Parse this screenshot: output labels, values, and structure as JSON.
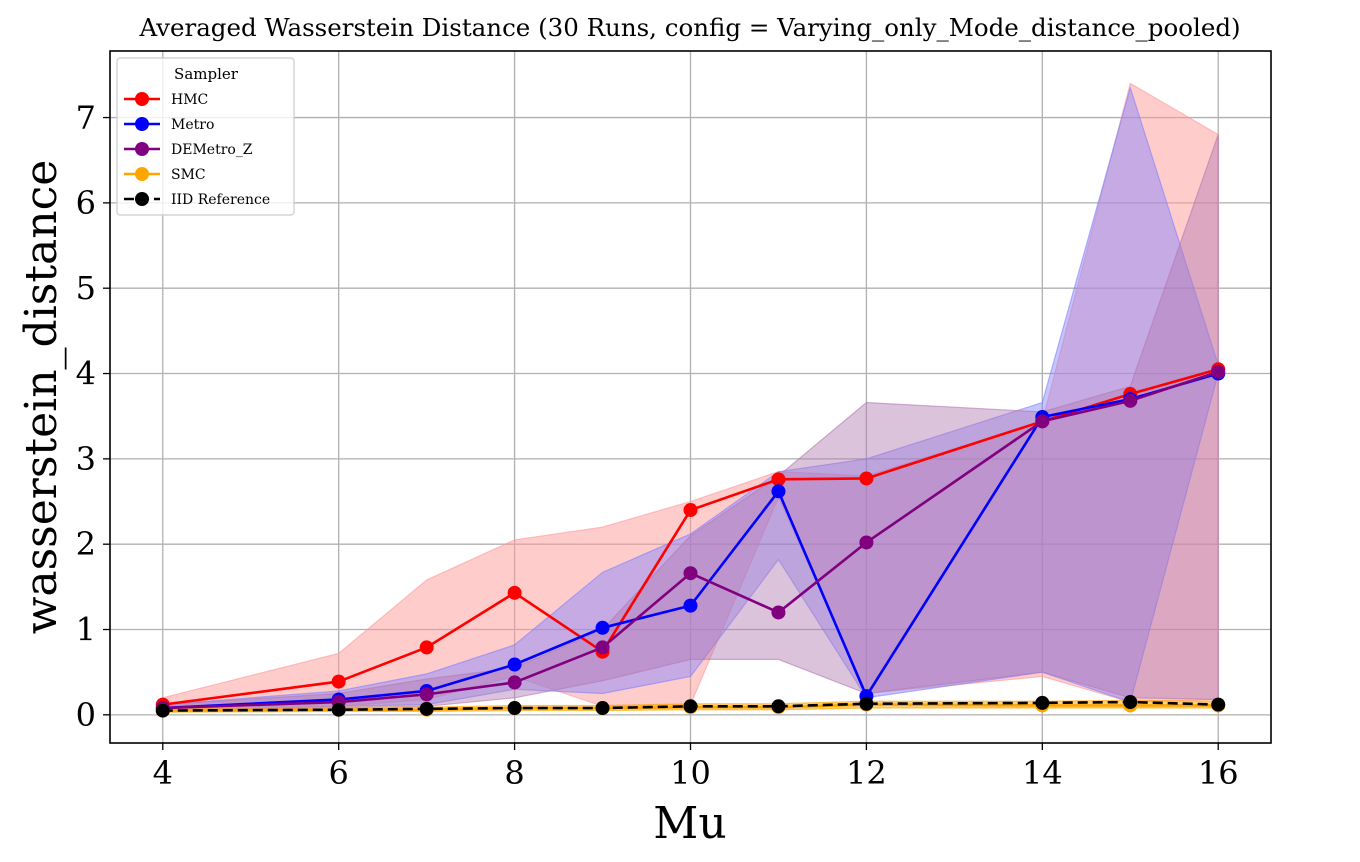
{
  "chart_data": {
    "type": "line",
    "title": "Averaged Wasserstein Distance (30 Runs, config = Varying_only_Mode_distance_pooled)",
    "xlabel": "Mu",
    "ylabel": "wasserstein_distance",
    "xlim": [
      3.4,
      16.6
    ],
    "ylim": [
      -0.33,
      7.78
    ],
    "grid": true,
    "legend_title": "Sampler",
    "legend_position": "top-left",
    "x": [
      4,
      6,
      7,
      8,
      9,
      10,
      11,
      12,
      14,
      15,
      16
    ],
    "x_ticks": [
      4,
      6,
      8,
      10,
      12,
      14,
      16
    ],
    "y_ticks": [
      0,
      1,
      2,
      3,
      4,
      5,
      6,
      7
    ],
    "series": [
      {
        "name": "HMC",
        "color": "#ff0000",
        "band_color": "#ff9999",
        "band_opacity": 0.5,
        "dashed": false,
        "values": [
          0.12,
          0.39,
          0.79,
          1.43,
          0.74,
          2.4,
          2.76,
          2.77,
          3.44,
          3.76,
          4.05
        ],
        "band_low": [
          0.05,
          0.1,
          0.18,
          0.45,
          0.1,
          0.12,
          2.55,
          0.25,
          0.45,
          0.15,
          0.18
        ],
        "band_high": [
          0.2,
          0.72,
          1.58,
          2.05,
          2.2,
          2.5,
          2.85,
          2.8,
          3.44,
          7.4,
          6.8
        ]
      },
      {
        "name": "Metro",
        "color": "#0000ff",
        "band_color": "#8080ff",
        "band_opacity": 0.45,
        "dashed": false,
        "values": [
          0.08,
          0.18,
          0.28,
          0.59,
          1.02,
          1.28,
          2.62,
          0.22,
          3.49,
          3.7,
          4.0
        ],
        "band_low": [
          0.05,
          0.1,
          0.12,
          0.3,
          0.25,
          0.45,
          1.82,
          0.2,
          0.5,
          0.15,
          4.0
        ],
        "band_high": [
          0.12,
          0.28,
          0.48,
          0.82,
          1.67,
          2.12,
          2.85,
          3.0,
          3.66,
          7.35,
          4.1
        ]
      },
      {
        "name": "DEMetro_Z",
        "color": "#800080",
        "band_color": "#b27ab2",
        "band_opacity": 0.45,
        "dashed": false,
        "values": [
          0.08,
          0.15,
          0.24,
          0.38,
          0.79,
          1.66,
          1.2,
          2.02,
          3.44,
          3.68,
          4.02
        ],
        "band_low": [
          0.05,
          0.08,
          0.1,
          0.2,
          0.4,
          0.65,
          0.65,
          0.25,
          0.5,
          0.2,
          0.18
        ],
        "band_high": [
          0.12,
          0.25,
          0.42,
          0.55,
          1.0,
          2.1,
          2.8,
          3.66,
          3.55,
          3.85,
          6.8
        ]
      },
      {
        "name": "SMC",
        "color": "#ffa500",
        "band_color": "#ffa500",
        "band_opacity": 0.5,
        "dashed": false,
        "values": [
          0.05,
          0.06,
          0.06,
          0.08,
          0.08,
          0.09,
          0.09,
          0.12,
          0.11,
          0.11,
          0.11
        ],
        "band_low": [
          0.03,
          0.04,
          0.04,
          0.05,
          0.05,
          0.06,
          0.06,
          0.08,
          0.08,
          0.08,
          0.08
        ],
        "band_high": [
          0.08,
          0.09,
          0.09,
          0.11,
          0.11,
          0.13,
          0.13,
          0.16,
          0.16,
          0.17,
          0.16
        ]
      },
      {
        "name": "IID Reference",
        "color": "#000000",
        "band_color": null,
        "band_opacity": 0,
        "dashed": true,
        "values": [
          0.05,
          0.06,
          0.07,
          0.08,
          0.08,
          0.1,
          0.1,
          0.13,
          0.14,
          0.15,
          0.12
        ],
        "band_low": null,
        "band_high": null
      }
    ]
  }
}
